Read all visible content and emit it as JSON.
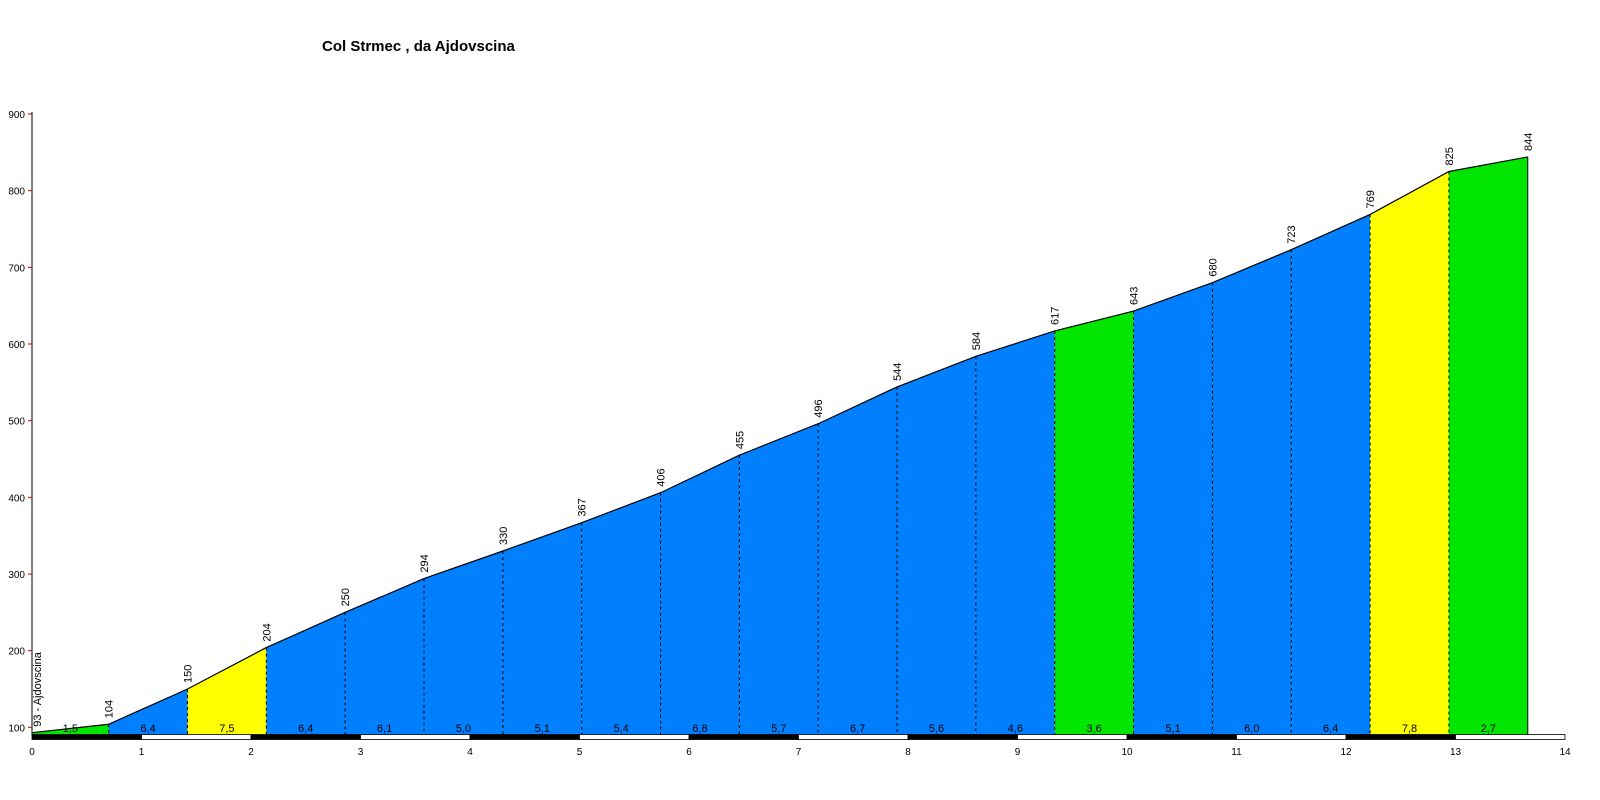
{
  "chart_data": {
    "type": "area",
    "title": "Col Strmec , da Ajdovscina",
    "xlabel": "",
    "ylabel": "",
    "xlim": [
      0,
      14
    ],
    "ylim": [
      90,
      900
    ],
    "x_ticks": [
      0,
      1,
      2,
      3,
      4,
      5,
      6,
      7,
      8,
      9,
      10,
      11,
      12,
      13,
      14
    ],
    "y_ticks": [
      100,
      200,
      300,
      400,
      500,
      600,
      700,
      800,
      900
    ],
    "start_label": "93 - Ajdovscina",
    "points": [
      {
        "x": 0,
        "y": 93
      },
      {
        "x": 0.7,
        "y": 104
      },
      {
        "x": 1.42,
        "y": 150
      },
      {
        "x": 2.14,
        "y": 204
      },
      {
        "x": 2.86,
        "y": 250
      },
      {
        "x": 3.58,
        "y": 294
      },
      {
        "x": 4.3,
        "y": 330
      },
      {
        "x": 5.02,
        "y": 367
      },
      {
        "x": 5.74,
        "y": 406
      },
      {
        "x": 6.46,
        "y": 455
      },
      {
        "x": 7.18,
        "y": 496
      },
      {
        "x": 7.9,
        "y": 544
      },
      {
        "x": 8.62,
        "y": 584
      },
      {
        "x": 9.34,
        "y": 617
      },
      {
        "x": 10.06,
        "y": 643
      },
      {
        "x": 10.78,
        "y": 680
      },
      {
        "x": 11.5,
        "y": 723
      },
      {
        "x": 12.22,
        "y": 769
      },
      {
        "x": 12.94,
        "y": 825
      },
      {
        "x": 13.66,
        "y": 844
      }
    ],
    "elevation_labels": [
      "104",
      "150",
      "204",
      "250",
      "294",
      "330",
      "367",
      "406",
      "455",
      "496",
      "544",
      "584",
      "617",
      "643",
      "680",
      "723",
      "769",
      "825",
      "844"
    ],
    "segments": [
      {
        "gradient": "1,5",
        "color": "#00e600"
      },
      {
        "gradient": "6,4",
        "color": "#0080ff"
      },
      {
        "gradient": "7,5",
        "color": "#ffff00"
      },
      {
        "gradient": "6,4",
        "color": "#0080ff"
      },
      {
        "gradient": "6,1",
        "color": "#0080ff"
      },
      {
        "gradient": "5,0",
        "color": "#0080ff"
      },
      {
        "gradient": "5,1",
        "color": "#0080ff"
      },
      {
        "gradient": "5,4",
        "color": "#0080ff"
      },
      {
        "gradient": "6,8",
        "color": "#0080ff"
      },
      {
        "gradient": "5,7",
        "color": "#0080ff"
      },
      {
        "gradient": "6,7",
        "color": "#0080ff"
      },
      {
        "gradient": "5,6",
        "color": "#0080ff"
      },
      {
        "gradient": "4,6",
        "color": "#0080ff"
      },
      {
        "gradient": "3,6",
        "color": "#00e600"
      },
      {
        "gradient": "5,1",
        "color": "#0080ff"
      },
      {
        "gradient": "6,0",
        "color": "#0080ff"
      },
      {
        "gradient": "6,4",
        "color": "#0080ff"
      },
      {
        "gradient": "7,8",
        "color": "#ffff00"
      },
      {
        "gradient": "2,7",
        "color": "#00e600"
      }
    ],
    "grid": false,
    "legend": "none"
  }
}
